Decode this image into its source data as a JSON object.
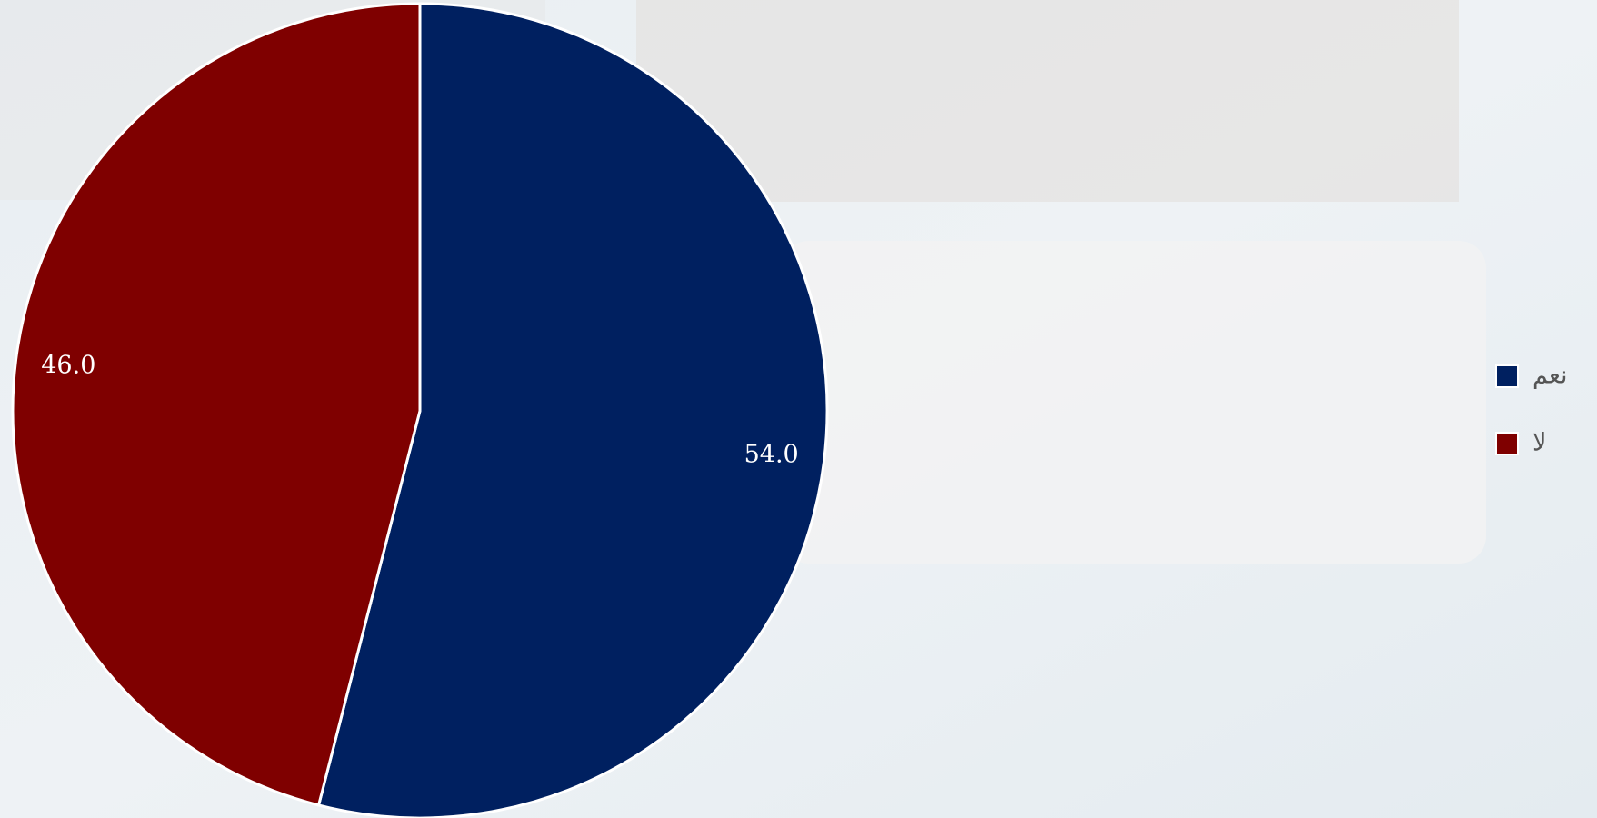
{
  "chart_data": {
    "type": "pie",
    "categories": [
      "نعم",
      "لا"
    ],
    "values": [
      54,
      46
    ],
    "value_labels": [
      "54.0",
      "46.0"
    ],
    "colors": [
      "#002060",
      "#7f0000"
    ],
    "legend": "right"
  }
}
